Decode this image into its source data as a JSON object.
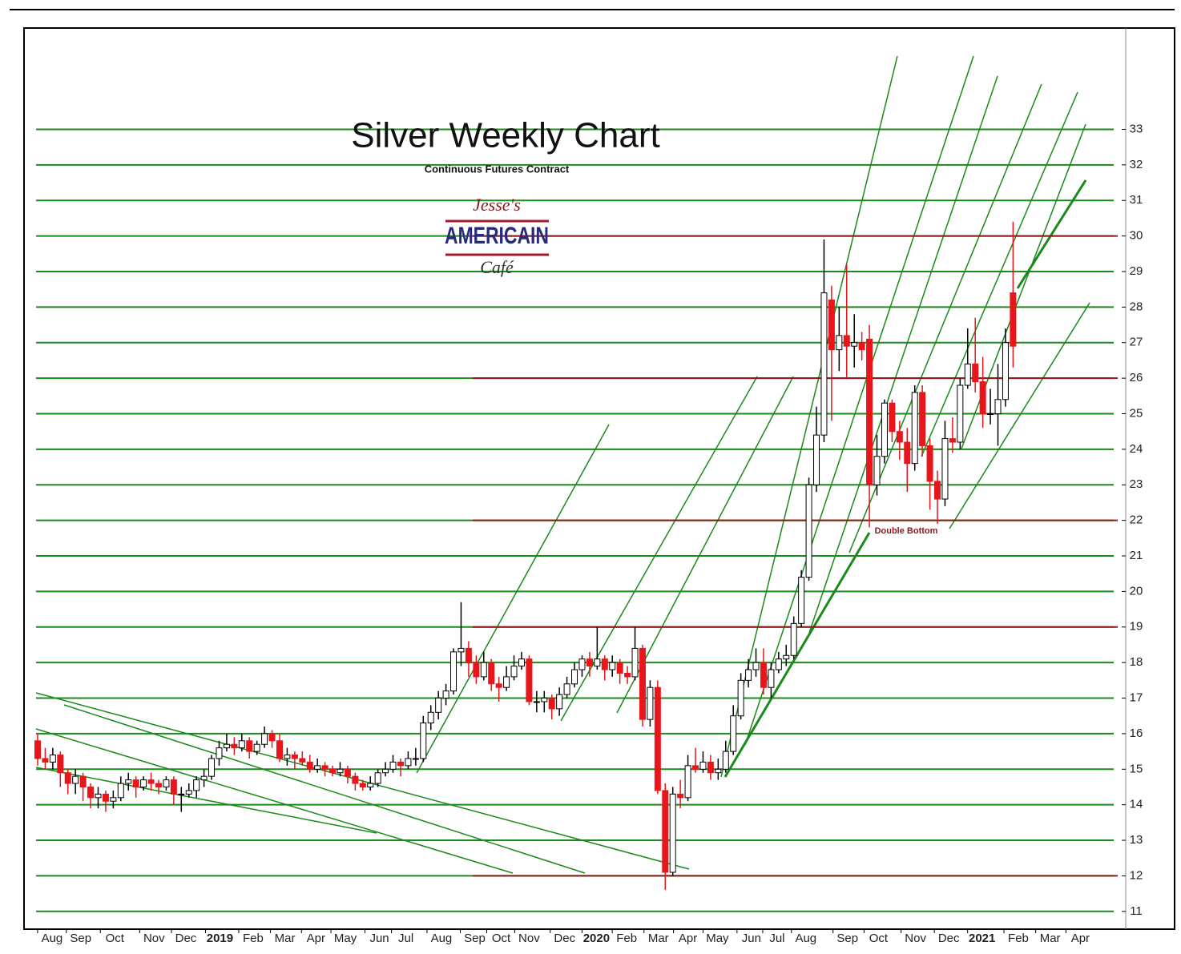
{
  "chart_data": {
    "type": "candlestick",
    "title": "Silver Weekly Chart",
    "subtitle": "Continuous Futures Contract",
    "logo_text": [
      "Jesse's",
      "AMERICAIN",
      "Café"
    ],
    "annotations": [
      "Double Bottom"
    ],
    "up_color": "#ffffff",
    "down_color": "#e8161a",
    "wick_color": "#000000",
    "grid": true,
    "grid_color": "#1a8a1a",
    "levels": [
      30,
      26,
      22,
      19,
      12
    ],
    "level_color": "#8b1a1a",
    "xlim": [
      -1.8,
      143.9
    ],
    "xticks": [
      {
        "value": 1.9,
        "label": "Aug"
      },
      {
        "value": 5.7,
        "label": "Sep"
      },
      {
        "value": 10.2,
        "label": "Oct"
      },
      {
        "value": 15.4,
        "label": "Nov"
      },
      {
        "value": 19.6,
        "label": "Dec"
      },
      {
        "value": 24.1,
        "label": "2019"
      },
      {
        "value": 28.5,
        "label": "Feb"
      },
      {
        "value": 32.7,
        "label": "Mar"
      },
      {
        "value": 36.8,
        "label": "Apr"
      },
      {
        "value": 40.7,
        "label": "May"
      },
      {
        "value": 45.2,
        "label": "Jun"
      },
      {
        "value": 48.7,
        "label": "Jul"
      },
      {
        "value": 53.4,
        "label": "Aug"
      },
      {
        "value": 57.8,
        "label": "Sep"
      },
      {
        "value": 61.3,
        "label": "Oct"
      },
      {
        "value": 65.0,
        "label": "Nov"
      },
      {
        "value": 69.7,
        "label": "Dec"
      },
      {
        "value": 73.9,
        "label": "2020"
      },
      {
        "value": 77.9,
        "label": "Feb"
      },
      {
        "value": 82.1,
        "label": "Mar"
      },
      {
        "value": 86.0,
        "label": "Apr"
      },
      {
        "value": 89.9,
        "label": "May"
      },
      {
        "value": 94.4,
        "label": "Jun"
      },
      {
        "value": 97.8,
        "label": "Jul"
      },
      {
        "value": 101.6,
        "label": "Aug"
      },
      {
        "value": 107.1,
        "label": "Sep"
      },
      {
        "value": 111.2,
        "label": "Oct"
      },
      {
        "value": 116.1,
        "label": "Nov"
      },
      {
        "value": 120.5,
        "label": "Dec"
      },
      {
        "value": 124.9,
        "label": "2021"
      },
      {
        "value": 129.7,
        "label": "Feb"
      },
      {
        "value": 133.9,
        "label": "Mar"
      },
      {
        "value": 137.9,
        "label": "Apr"
      }
    ],
    "ylim": [
      10.5,
      35.85
    ],
    "yticks": [
      11,
      12,
      13,
      14,
      15,
      16,
      17,
      18,
      19,
      20,
      21,
      22,
      23,
      24,
      25,
      26,
      27,
      28,
      29,
      30,
      31,
      32,
      33
    ],
    "open": [
      15.8,
      15.3,
      15.2,
      15.4,
      14.9,
      14.6,
      14.8,
      14.5,
      14.2,
      14.3,
      14.1,
      14.2,
      14.6,
      14.7,
      14.5,
      14.7,
      14.6,
      14.5,
      14.7,
      14.3,
      14.3,
      14.4,
      14.7,
      14.8,
      15.3,
      15.6,
      15.7,
      15.6,
      15.8,
      15.5,
      15.7,
      16.0,
      15.8,
      15.3,
      15.4,
      15.3,
      15.2,
      15.0,
      15.1,
      15.0,
      14.9,
      15.0,
      14.8,
      14.6,
      14.5,
      14.6,
      14.9,
      15.0,
      15.2,
      15.1,
      15.3,
      15.3,
      16.3,
      16.6,
      17.0,
      17.2,
      18.3,
      18.4,
      18.0,
      17.6,
      18.0,
      17.4,
      17.3,
      17.6,
      17.9,
      18.1,
      16.9,
      16.9,
      17.0,
      16.7,
      17.1,
      17.4,
      17.8,
      18.1,
      17.9,
      18.1,
      17.8,
      18.0,
      17.7,
      17.6,
      18.4,
      16.4,
      17.3,
      14.4,
      12.1,
      14.3,
      14.2,
      15.1,
      15.0,
      15.2,
      14.9,
      15.0,
      15.5,
      16.5,
      17.5,
      17.8,
      18.0,
      17.3,
      17.8,
      18.1,
      18.2,
      19.1,
      20.4,
      23.0,
      24.4,
      28.2,
      26.8,
      27.2,
      26.9,
      27.0,
      27.1,
      23.0,
      23.8,
      25.3,
      24.5,
      24.2,
      23.6,
      25.6,
      24.1,
      23.1,
      22.6,
      24.3,
      24.2,
      25.8,
      26.4,
      25.9,
      25.0,
      25.0,
      25.4,
      28.4
    ],
    "high": [
      16.0,
      15.6,
      15.6,
      15.5,
      15.0,
      15.0,
      14.9,
      14.6,
      14.5,
      14.4,
      14.4,
      14.8,
      14.9,
      14.8,
      14.8,
      14.9,
      14.7,
      14.8,
      14.8,
      14.5,
      14.6,
      14.8,
      15.0,
      15.4,
      15.8,
      16.0,
      15.9,
      16.0,
      15.9,
      15.8,
      16.2,
      16.1,
      16.0,
      15.6,
      15.5,
      15.5,
      15.4,
      15.3,
      15.2,
      15.1,
      15.2,
      15.1,
      14.9,
      14.7,
      14.8,
      15.0,
      15.2,
      15.4,
      15.3,
      15.5,
      15.6,
      16.5,
      16.8,
      17.2,
      17.4,
      18.4,
      19.7,
      18.6,
      18.2,
      18.3,
      18.1,
      17.6,
      17.9,
      18.2,
      18.3,
      18.2,
      17.2,
      17.2,
      17.1,
      17.3,
      17.6,
      18.0,
      18.2,
      18.3,
      19.0,
      18.2,
      18.2,
      18.1,
      17.9,
      19.0,
      18.5,
      17.5,
      17.5,
      14.6,
      14.5,
      14.7,
      15.4,
      15.6,
      15.5,
      15.4,
      15.3,
      15.8,
      16.8,
      17.7,
      18.1,
      18.4,
      18.4,
      18.0,
      18.3,
      18.5,
      19.3,
      20.6,
      23.2,
      25.2,
      29.9,
      28.6,
      28.0,
      29.2,
      27.8,
      27.3,
      27.5,
      24.4,
      25.4,
      25.4,
      24.8,
      24.6,
      25.8,
      25.8,
      24.3,
      23.4,
      24.8,
      24.9,
      26.0,
      27.4,
      27.7,
      26.6,
      25.7,
      26.4,
      27.4,
      30.4
    ],
    "low": [
      15.1,
      15.0,
      15.0,
      14.5,
      14.3,
      14.3,
      14.1,
      13.9,
      13.9,
      13.8,
      13.9,
      14.1,
      14.4,
      14.2,
      14.4,
      14.4,
      14.3,
      14.4,
      14.0,
      13.8,
      14.2,
      14.2,
      14.5,
      14.7,
      15.1,
      15.5,
      15.4,
      15.5,
      15.3,
      15.4,
      15.6,
      15.6,
      15.2,
      15.1,
      15.0,
      15.1,
      14.9,
      14.9,
      14.8,
      14.8,
      14.8,
      14.6,
      14.4,
      14.4,
      14.4,
      14.5,
      14.8,
      14.9,
      14.8,
      15.0,
      15.1,
      15.2,
      16.1,
      16.4,
      16.8,
      17.1,
      17.9,
      17.6,
      17.4,
      17.5,
      17.2,
      16.9,
      17.2,
      17.5,
      17.8,
      16.8,
      16.6,
      16.6,
      16.4,
      16.5,
      17.0,
      17.3,
      17.6,
      17.6,
      17.8,
      17.5,
      17.6,
      17.4,
      17.4,
      17.5,
      16.2,
      16.2,
      14.3,
      11.6,
      12.0,
      13.9,
      14.1,
      14.9,
      14.9,
      14.7,
      14.7,
      14.9,
      15.4,
      16.4,
      17.3,
      17.6,
      17.1,
      17.0,
      17.7,
      17.9,
      18.1,
      19.0,
      20.3,
      22.8,
      24.2,
      24.8,
      26.2,
      26.0,
      26.3,
      26.5,
      21.8,
      22.7,
      23.6,
      24.2,
      23.7,
      22.8,
      23.4,
      23.8,
      22.3,
      21.9,
      22.4,
      23.9,
      24.0,
      25.7,
      25.6,
      24.6,
      24.7,
      24.1,
      25.2,
      26.3
    ],
    "close": [
      15.3,
      15.2,
      15.4,
      14.9,
      14.6,
      14.8,
      14.5,
      14.2,
      14.3,
      14.1,
      14.2,
      14.6,
      14.7,
      14.5,
      14.7,
      14.6,
      14.5,
      14.7,
      14.3,
      14.3,
      14.4,
      14.7,
      14.8,
      15.3,
      15.6,
      15.7,
      15.6,
      15.8,
      15.5,
      15.7,
      16.0,
      15.8,
      15.3,
      15.4,
      15.3,
      15.2,
      15.0,
      15.1,
      15.0,
      14.9,
      15.0,
      14.8,
      14.6,
      14.5,
      14.6,
      14.9,
      15.0,
      15.2,
      15.1,
      15.3,
      15.3,
      16.3,
      16.6,
      17.0,
      17.2,
      18.3,
      18.4,
      18.0,
      17.6,
      18.0,
      17.4,
      17.3,
      17.6,
      17.9,
      18.1,
      16.9,
      16.9,
      17.0,
      16.7,
      17.1,
      17.4,
      17.8,
      18.1,
      17.9,
      18.1,
      17.8,
      18.0,
      17.7,
      17.6,
      18.4,
      16.4,
      17.3,
      14.4,
      12.1,
      14.3,
      14.2,
      15.1,
      15.0,
      15.2,
      14.9,
      15.0,
      15.5,
      16.5,
      17.5,
      17.8,
      18.0,
      17.3,
      17.8,
      18.1,
      18.2,
      19.1,
      20.4,
      23.0,
      24.4,
      28.4,
      26.8,
      27.2,
      26.9,
      27.0,
      26.8,
      23.0,
      23.8,
      25.3,
      24.5,
      24.2,
      23.6,
      25.6,
      24.1,
      23.1,
      22.6,
      24.3,
      24.2,
      25.8,
      26.4,
      25.9,
      25.0,
      25.0,
      25.4,
      27.0,
      26.9
    ]
  }
}
